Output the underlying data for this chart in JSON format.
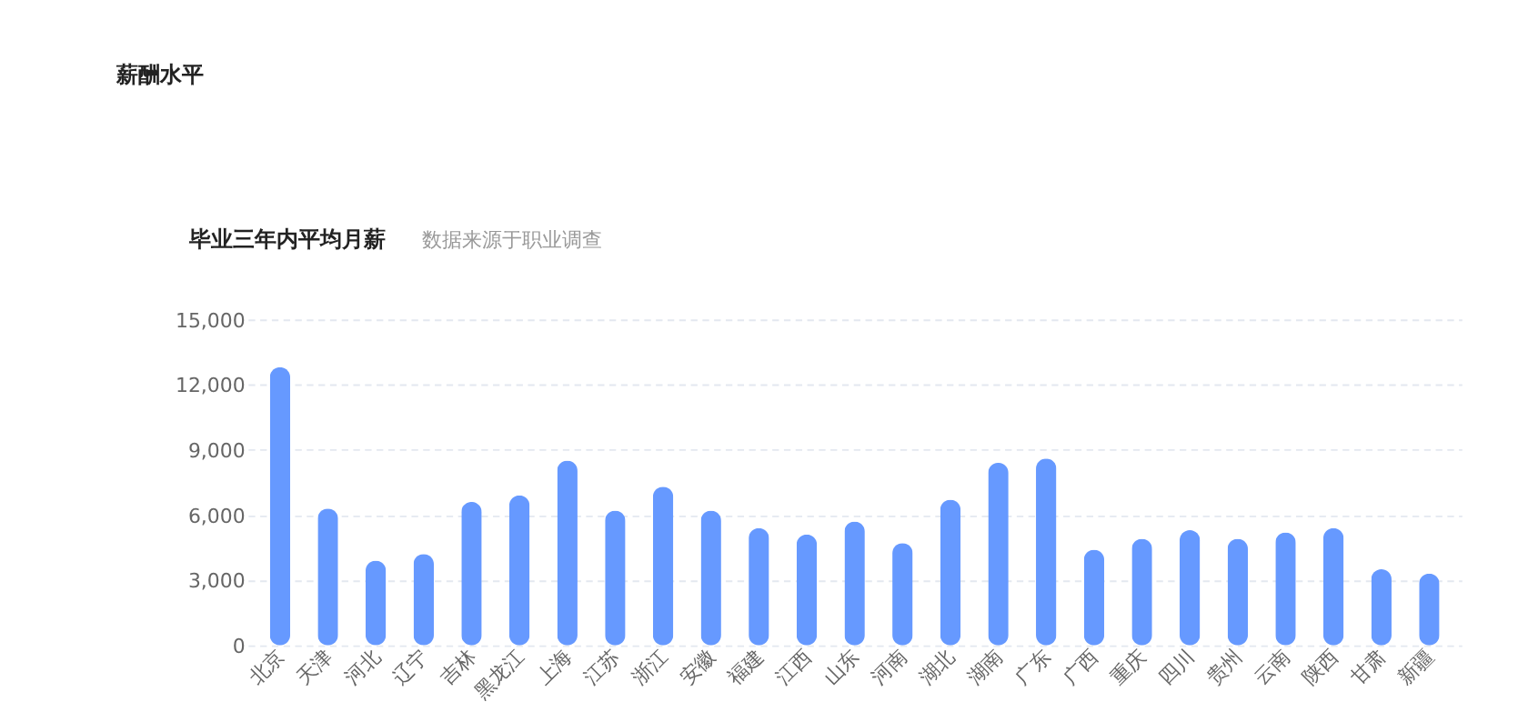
{
  "chart_data": {
    "type": "bar",
    "title": "薪酬水平",
    "subtitle": "毕业三年内平均月薪",
    "annotations": [
      "数据来源于职业调查"
    ],
    "categories": [
      "北京",
      "天津",
      "河北",
      "辽宁",
      "吉林",
      "黑龙江",
      "上海",
      "江苏",
      "浙江",
      "安徽",
      "福建",
      "江西",
      "山东",
      "河南",
      "湖北",
      "湖南",
      "广东",
      "广西",
      "重庆",
      "四川",
      "贵州",
      "云南",
      "陕西",
      "甘肃",
      "新疆"
    ],
    "values": [
      12800,
      6300,
      3900,
      4200,
      6600,
      6900,
      8500,
      6200,
      7300,
      6200,
      5400,
      5100,
      5700,
      4700,
      6700,
      8400,
      8600,
      4400,
      4900,
      5300,
      4900,
      5200,
      5400,
      3500,
      3300
    ],
    "color": "#6699ff",
    "ylim": [
      0,
      15000
    ],
    "yticks": [
      {
        "value": 0,
        "label": "0"
      },
      {
        "value": 3000,
        "label": "3,000"
      },
      {
        "value": 6000,
        "label": "6,000"
      },
      {
        "value": 9000,
        "label": "9,000"
      },
      {
        "value": 12000,
        "label": "12,000"
      },
      {
        "value": 15000,
        "label": "15,000"
      }
    ],
    "grid": "y"
  }
}
